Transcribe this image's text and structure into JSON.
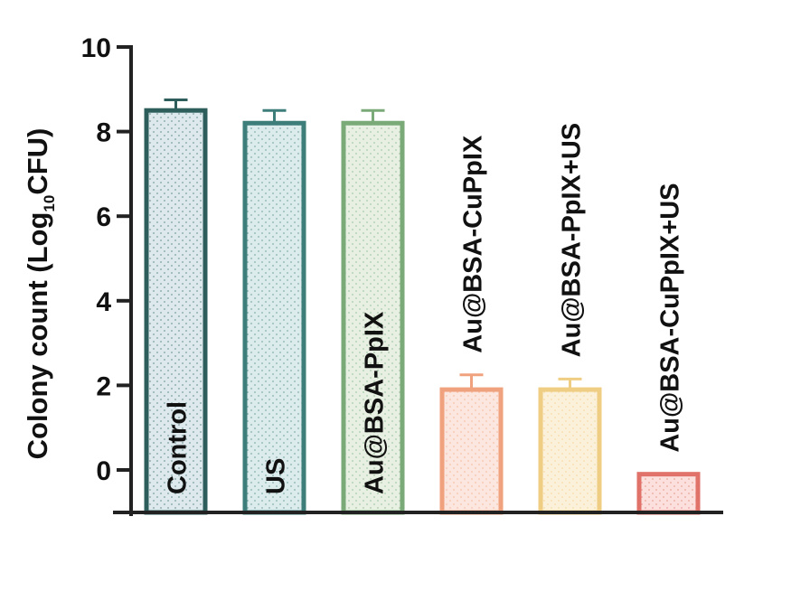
{
  "chart_data": {
    "type": "bar",
    "ylabel": "Colony count (Log",
    "ylabel_sub": "10",
    "ylabel_tail": "CFU)",
    "ylim": [
      -1,
      10
    ],
    "yticks": [
      0,
      2,
      4,
      6,
      8,
      10
    ],
    "grid": false,
    "legend": "none",
    "categories": [
      "Control",
      "US",
      "Au@BSA-PpIX",
      "Au@BSA-CuPpIX",
      "Au@BSA-PpIX+US",
      "Au@BSA-CuPpIX+US"
    ],
    "values": [
      8.5,
      8.2,
      8.2,
      1.9,
      1.9,
      -0.1
    ],
    "errors": [
      0.25,
      0.3,
      0.3,
      0.35,
      0.25,
      0
    ],
    "colors": [
      "#2e5e5c",
      "#3e7e7a",
      "#7aaa78",
      "#f0a27e",
      "#efcd82",
      "#e0726a"
    ],
    "fill_tints": [
      "#dde9ec",
      "#dcebeb",
      "#e7f0e2",
      "#fbe7df",
      "#fbf0da",
      "#fbe0de"
    ],
    "label_anchor": [
      "inside",
      "inside",
      "inside",
      "above",
      "above",
      "above"
    ]
  }
}
